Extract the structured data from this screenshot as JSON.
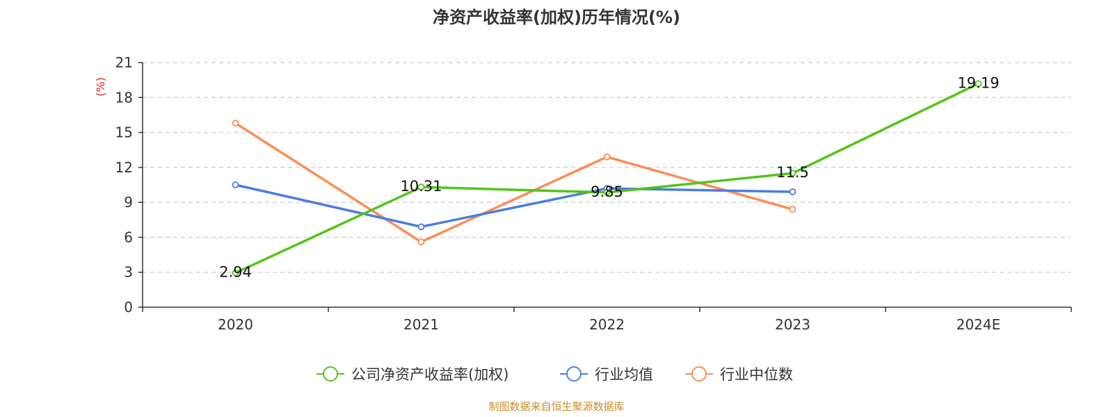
{
  "chart_data": {
    "type": "line",
    "title": "净资产收益率(加权)历年情况(%)",
    "ylabel": "(%)",
    "categories": [
      "2020",
      "2021",
      "2022",
      "2023",
      "2024E"
    ],
    "ylim": [
      0,
      21
    ],
    "yticks": [
      0,
      3,
      6,
      9,
      12,
      15,
      18,
      21
    ],
    "grid": true,
    "legend_position": "bottom",
    "series": [
      {
        "name": "公司净资产收益率(加权)",
        "color": "#52c41a",
        "values": [
          2.94,
          10.31,
          9.85,
          11.5,
          19.19
        ],
        "data_labels": [
          "2.94",
          "10.31",
          "9.85",
          "11.5",
          "19.19"
        ]
      },
      {
        "name": "行业均值",
        "color": "#4a7de0",
        "values": [
          10.5,
          6.9,
          10.2,
          9.9,
          null
        ]
      },
      {
        "name": "行业中位数",
        "color": "#ff8c55",
        "values": [
          15.8,
          5.6,
          12.9,
          8.4,
          null
        ]
      }
    ]
  },
  "source_text": "制图数据来自恒生聚源数据库",
  "colors": {
    "source": "#c8902a",
    "ylabel": "#e02020",
    "axis": "#333333",
    "grid": "#cccccc"
  }
}
